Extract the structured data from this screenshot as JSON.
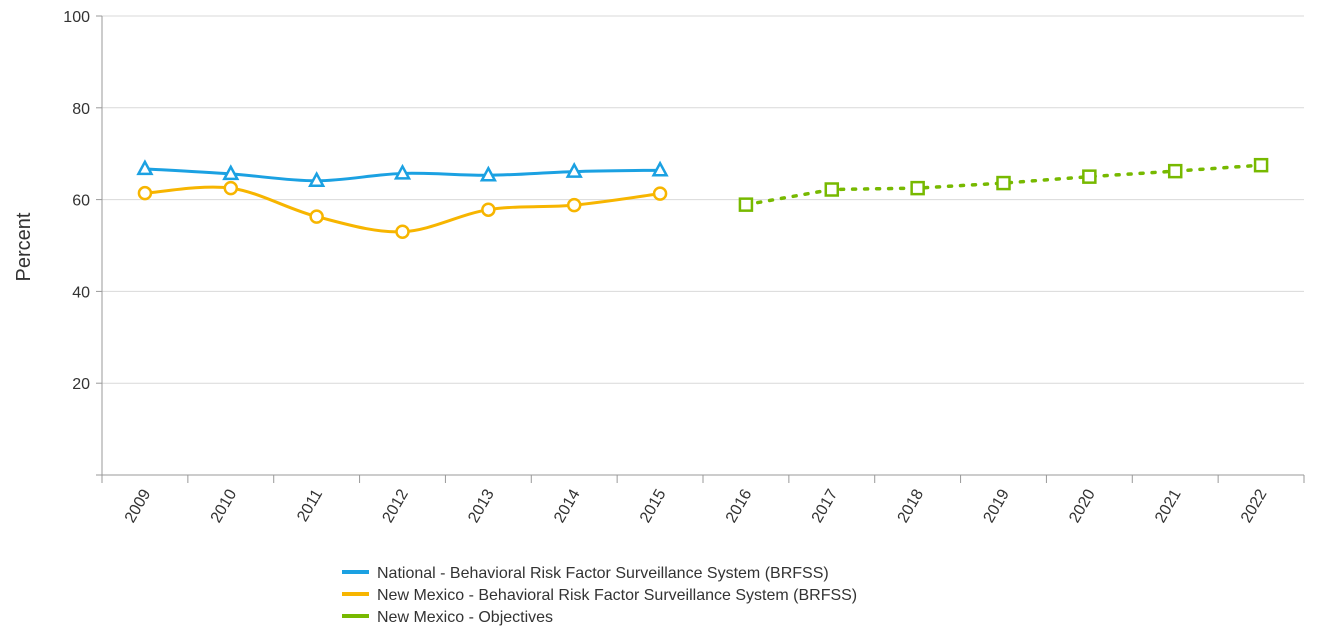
{
  "chart_data": {
    "type": "line",
    "title": "",
    "xlabel": "",
    "ylabel": "Percent",
    "categories": [
      "2009",
      "2010",
      "2011",
      "2012",
      "2013",
      "2014",
      "2015",
      "2016",
      "2017",
      "2018",
      "2019",
      "2020",
      "2021",
      "2022"
    ],
    "ylim": [
      0,
      100
    ],
    "yticks": [
      20,
      40,
      60,
      80,
      100
    ],
    "grid": true,
    "legend_position": "bottom",
    "series": [
      {
        "name": "National - Behavioral Risk Factor Surveillance System (BRFSS)",
        "color": "#1ba1e2",
        "marker": "triangle",
        "line_style": "solid",
        "x": [
          "2009",
          "2010",
          "2011",
          "2012",
          "2013",
          "2014",
          "2015"
        ],
        "values": [
          66.7,
          65.6,
          64.1,
          65.7,
          65.3,
          66.1,
          66.4
        ]
      },
      {
        "name": "New Mexico - Behavioral Risk Factor Surveillance System (BRFSS)",
        "color": "#f7b500",
        "marker": "circle",
        "line_style": "solid",
        "x": [
          "2009",
          "2010",
          "2011",
          "2012",
          "2013",
          "2014",
          "2015"
        ],
        "values": [
          61.4,
          62.5,
          56.3,
          53.0,
          57.8,
          58.8,
          61.3
        ]
      },
      {
        "name": "New Mexico - Objectives",
        "color": "#77b900",
        "marker": "square",
        "line_style": "dotted",
        "x": [
          "2016",
          "2017",
          "2018",
          "2019",
          "2020",
          "2021",
          "2022"
        ],
        "values": [
          58.9,
          62.2,
          62.5,
          63.6,
          65.0,
          66.2,
          67.5
        ]
      }
    ]
  }
}
